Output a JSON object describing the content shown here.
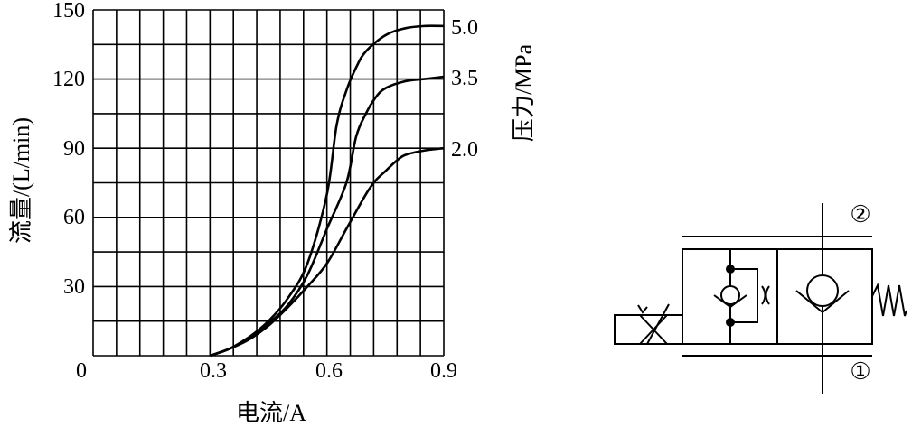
{
  "chart_data": {
    "type": "line",
    "xlabel": "电流/A",
    "ylabel": "流量/(L/min)",
    "right_label": "压力/MPa",
    "xlim": [
      0,
      0.9
    ],
    "ylim": [
      0,
      150
    ],
    "x_ticks": [
      "0",
      "0.3",
      "0.6",
      "0.9"
    ],
    "y_ticks": [
      "150",
      "120",
      "90",
      "60",
      "30"
    ],
    "grid": true,
    "series": [
      {
        "name": "5.0",
        "x": [
          0.3,
          0.35,
          0.4,
          0.45,
          0.5,
          0.55,
          0.6,
          0.625,
          0.65,
          0.675,
          0.7,
          0.75,
          0.8,
          0.85,
          0.9
        ],
        "y": [
          0,
          3,
          8,
          15,
          25,
          40,
          70,
          100,
          115,
          125,
          132,
          139,
          142,
          143,
          143
        ]
      },
      {
        "name": "3.5",
        "x": [
          0.3,
          0.35,
          0.4,
          0.45,
          0.5,
          0.55,
          0.6,
          0.65,
          0.675,
          0.7,
          0.725,
          0.75,
          0.8,
          0.85,
          0.9
        ],
        "y": [
          0,
          3,
          8,
          14,
          22,
          35,
          55,
          75,
          95,
          105,
          112,
          116,
          119,
          120,
          121
        ]
      },
      {
        "name": "2.0",
        "x": [
          0.3,
          0.35,
          0.4,
          0.45,
          0.5,
          0.55,
          0.6,
          0.65,
          0.7,
          0.725,
          0.75,
          0.775,
          0.8,
          0.85,
          0.9
        ],
        "y": [
          0,
          3,
          7,
          13,
          21,
          30,
          40,
          55,
          70,
          76,
          80,
          84,
          87,
          89,
          90
        ]
      }
    ]
  },
  "symbol": {
    "port_top": "②",
    "port_bottom": "①"
  }
}
